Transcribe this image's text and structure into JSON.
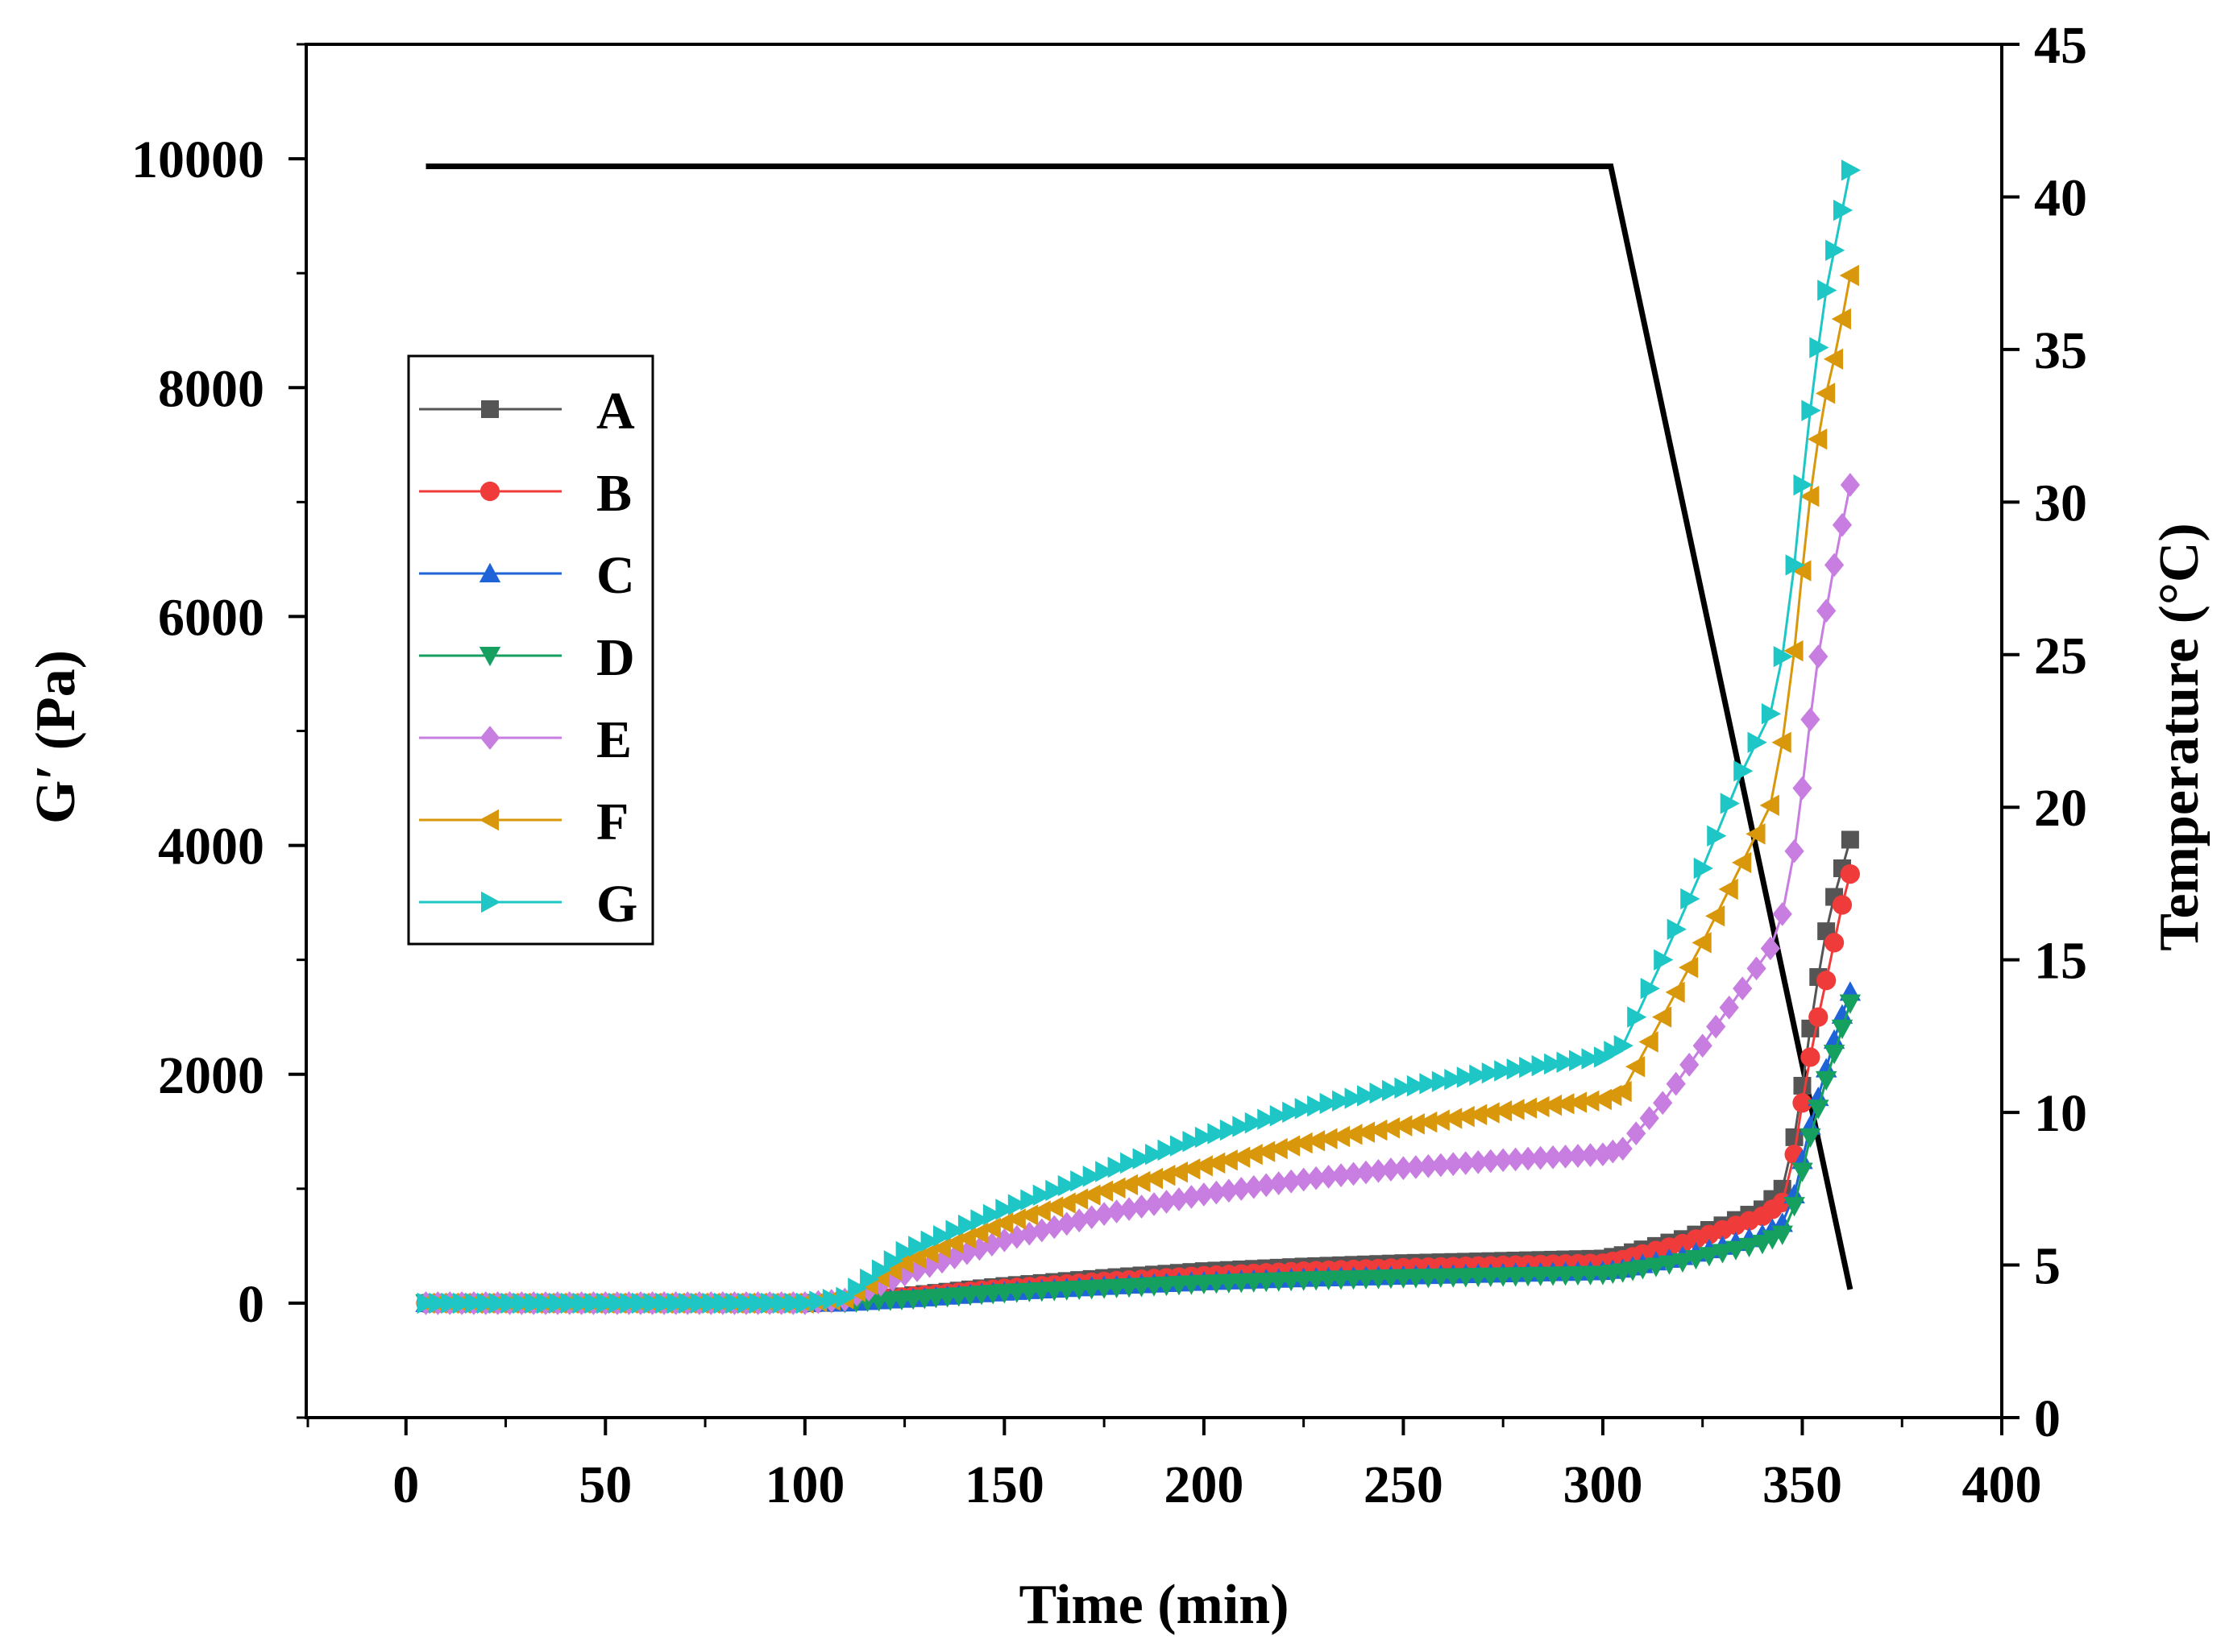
{
  "chart_data": {
    "type": "line",
    "xlabel": "Time (min)",
    "ylabel_left": "G′ (Pa)",
    "ylabel_right": "Temperature (°C)",
    "xlim": [
      -25,
      400
    ],
    "ylim_left": [
      -1000,
      11000
    ],
    "ylim_right": [
      0,
      45
    ],
    "x_ticks": [
      0,
      50,
      100,
      150,
      200,
      250,
      300,
      350,
      400
    ],
    "x_tick_labels": [
      "0",
      "50",
      "100",
      "150",
      "200",
      "250",
      "300",
      "350",
      "400"
    ],
    "y_left_ticks": [
      0,
      2000,
      4000,
      6000,
      8000,
      10000
    ],
    "y_left_tick_labels": [
      "0",
      "2000",
      "4000",
      "6000",
      "8000",
      "10000"
    ],
    "y_right_ticks": [
      0,
      5,
      10,
      15,
      20,
      25,
      30,
      35,
      40,
      45
    ],
    "y_right_tick_labels": [
      "0",
      "5",
      "10",
      "15",
      "20",
      "25",
      "30",
      "35",
      "40",
      "45"
    ],
    "grid": false,
    "legend_position": "left-middle",
    "temperature": {
      "name": "Temperature",
      "color": "#000000",
      "x": [
        5,
        302,
        362
      ],
      "y": [
        41,
        41,
        4.2
      ]
    },
    "series": [
      {
        "name": "A",
        "label": "A",
        "color": "#555555",
        "marker": "square",
        "x": [
          5,
          50,
          100,
          110,
          130,
          150,
          175,
          200,
          225,
          250,
          275,
          300,
          305,
          310,
          320,
          330,
          340,
          345,
          348,
          350,
          352,
          354,
          356,
          358,
          360,
          362
        ],
        "y": [
          0,
          0,
          0,
          10,
          80,
          150,
          220,
          280,
          320,
          350,
          370,
          390,
          420,
          470,
          560,
          680,
          820,
          1000,
          1450,
          1900,
          2400,
          2850,
          3250,
          3550,
          3800,
          4050
        ]
      },
      {
        "name": "B",
        "label": "B",
        "color": "#f03b3b",
        "marker": "circle",
        "x": [
          5,
          50,
          100,
          110,
          130,
          150,
          175,
          200,
          225,
          250,
          275,
          300,
          305,
          310,
          320,
          330,
          340,
          345,
          348,
          350,
          352,
          354,
          356,
          358,
          360,
          362
        ],
        "y": [
          0,
          0,
          0,
          10,
          70,
          130,
          190,
          240,
          280,
          310,
          330,
          350,
          380,
          430,
          520,
          640,
          760,
          880,
          1300,
          1750,
          2150,
          2500,
          2820,
          3150,
          3480,
          3750
        ]
      },
      {
        "name": "C",
        "label": "C",
        "color": "#1e64d8",
        "marker": "triangle-up",
        "x": [
          5,
          50,
          100,
          110,
          130,
          150,
          175,
          200,
          225,
          250,
          275,
          300,
          305,
          310,
          320,
          330,
          340,
          345,
          348,
          350,
          352,
          354,
          356,
          358,
          360,
          362
        ],
        "y": [
          0,
          0,
          0,
          5,
          50,
          100,
          150,
          190,
          220,
          240,
          260,
          280,
          300,
          340,
          410,
          500,
          600,
          700,
          950,
          1250,
          1550,
          1800,
          2050,
          2300,
          2520,
          2720
        ]
      },
      {
        "name": "D",
        "label": "D",
        "color": "#16a060",
        "marker": "triangle-down",
        "x": [
          5,
          50,
          100,
          110,
          130,
          150,
          175,
          200,
          225,
          250,
          275,
          300,
          305,
          310,
          320,
          330,
          340,
          345,
          348,
          350,
          352,
          354,
          356,
          358,
          360,
          362
        ],
        "y": [
          0,
          0,
          0,
          5,
          40,
          90,
          130,
          170,
          200,
          220,
          235,
          250,
          270,
          300,
          360,
          440,
          520,
          600,
          850,
          1150,
          1450,
          1700,
          1950,
          2180,
          2400,
          2620
        ]
      },
      {
        "name": "E",
        "label": "E",
        "color": "#c77ee0",
        "marker": "diamond",
        "x": [
          5,
          50,
          100,
          110,
          125,
          150,
          175,
          200,
          225,
          250,
          275,
          300,
          305,
          315,
          325,
          335,
          342,
          345,
          348,
          350,
          352,
          354,
          356,
          358,
          360,
          362
        ],
        "y": [
          0,
          0,
          0,
          30,
          250,
          550,
          780,
          950,
          1080,
          1180,
          1250,
          1300,
          1350,
          1750,
          2250,
          2750,
          3100,
          3400,
          3950,
          4500,
          5100,
          5650,
          6050,
          6450,
          6800,
          7150
        ]
      },
      {
        "name": "F",
        "label": "F",
        "color": "#d9980b",
        "marker": "triangle-left",
        "x": [
          5,
          50,
          100,
          110,
          125,
          150,
          175,
          200,
          225,
          250,
          275,
          300,
          305,
          315,
          325,
          335,
          342,
          345,
          348,
          350,
          352,
          354,
          356,
          358,
          360,
          362
        ],
        "y": [
          0,
          0,
          0,
          40,
          350,
          700,
          980,
          1200,
          1400,
          1550,
          1680,
          1780,
          1850,
          2500,
          3150,
          3850,
          4350,
          4900,
          5700,
          6400,
          7050,
          7550,
          7950,
          8250,
          8600,
          8980
        ]
      },
      {
        "name": "G",
        "label": "G",
        "color": "#1ec6c6",
        "marker": "triangle-right",
        "x": [
          5,
          50,
          100,
          110,
          125,
          150,
          175,
          200,
          225,
          250,
          275,
          300,
          305,
          315,
          325,
          335,
          342,
          345,
          348,
          350,
          352,
          354,
          356,
          358,
          360,
          362
        ],
        "y": [
          0,
          0,
          0,
          50,
          450,
          820,
          1150,
          1450,
          1700,
          1880,
          2030,
          2150,
          2250,
          3000,
          3800,
          4650,
          5150,
          5650,
          6450,
          7150,
          7800,
          8350,
          8850,
          9200,
          9550,
          9900
        ]
      }
    ]
  }
}
